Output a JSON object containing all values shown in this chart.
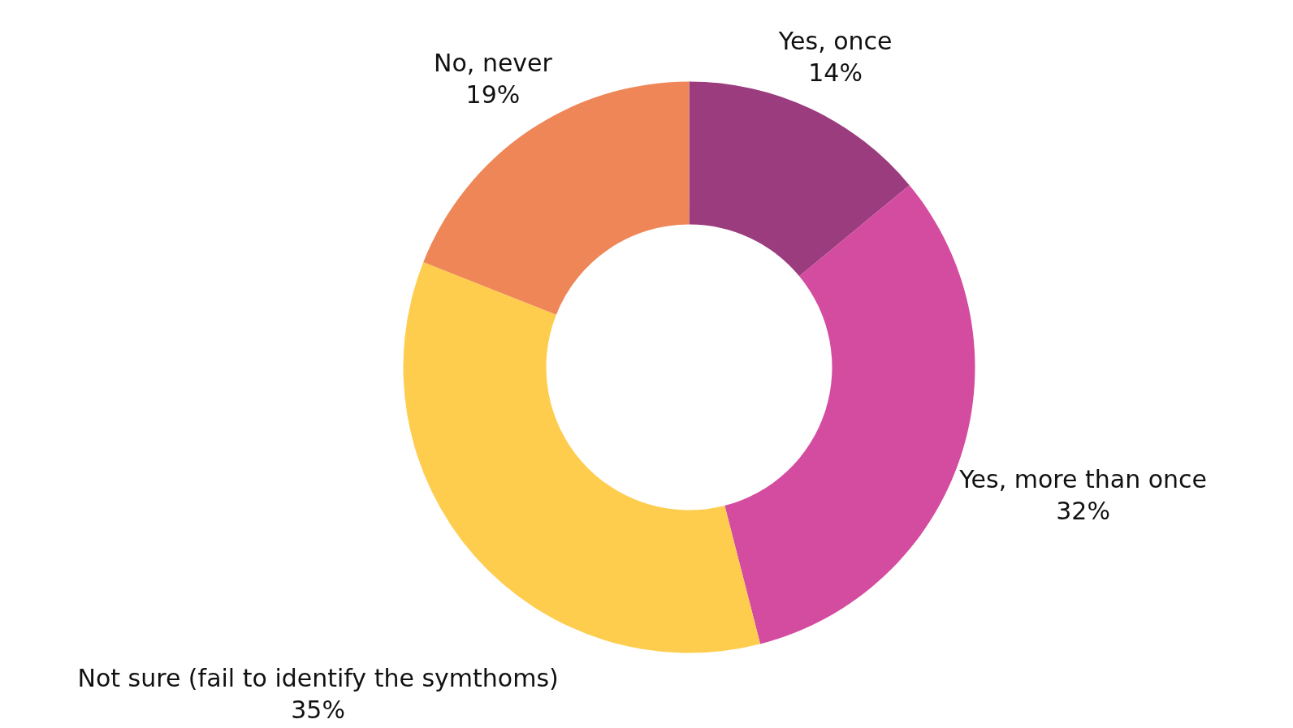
{
  "chart_data": {
    "type": "donut",
    "categories": [
      "Yes, once",
      "Yes, more than once",
      "Not sure (fail to identify the symthoms)",
      "No, never"
    ],
    "values": [
      14,
      32,
      35,
      19
    ],
    "colors": [
      "#9a3c7d",
      "#d44c9f",
      "#fecd4e",
      "#ef8657"
    ],
    "value_labels": [
      "14%",
      "32%",
      "35%",
      "19%"
    ]
  }
}
